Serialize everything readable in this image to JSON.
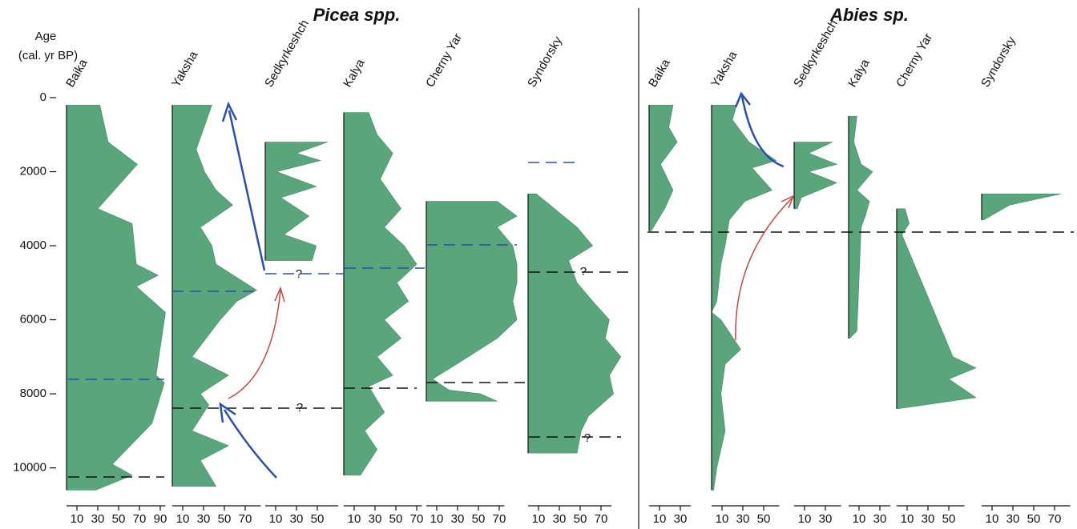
{
  "chart_data": {
    "type": "pollen-diagram",
    "ylabel": "Age",
    "ylabel_unit": "(cal. yr BP)",
    "ylim": [
      0,
      10700
    ],
    "yticks": [
      0,
      2000,
      4000,
      6000,
      8000,
      10000
    ],
    "color": "#5aa57c",
    "annotations": [
      "?",
      "?",
      "?",
      "?"
    ],
    "groups": [
      {
        "title": "Picea spp.",
        "panels": [
          {
            "name": "Baika",
            "xlim": [
              0,
              95
            ],
            "xticks": [
              10,
              30,
              50,
              70,
              90
            ],
            "ages": [
              200,
              1200,
              1800,
              3000,
              3400,
              4500,
              4800,
              5100,
              5800,
              7500,
              7700,
              8800,
              9900,
              10200,
              10600
            ],
            "values": [
              32,
              40,
              68,
              30,
              63,
              67,
              88,
              67,
              95,
              86,
              94,
              82,
              44,
              63,
              28
            ]
          },
          {
            "name": "Yaksha",
            "xlim": [
              0,
              85
            ],
            "xticks": [
              10,
              30,
              50,
              70
            ],
            "ages": [
              200,
              1400,
              2000,
              2500,
              2900,
              3500,
              4000,
              4500,
              5200,
              5500,
              6000,
              7000,
              7500,
              8000,
              8300,
              9000,
              9400,
              9800,
              10500
            ],
            "values": [
              38,
              23,
              31,
              42,
              58,
              27,
              38,
              42,
              81,
              62,
              46,
              19,
              54,
              27,
              35,
              19,
              54,
              27,
              42
            ]
          },
          {
            "name": "Sedkyrkeshch",
            "xlim": [
              0,
              70
            ],
            "xticks": [
              10,
              30,
              50
            ],
            "ages": [
              1200,
              1500,
              1700,
              2000,
              2400,
              2700,
              3200,
              3700,
              4000,
              4400
            ],
            "values": [
              60,
              30,
              53,
              11,
              49,
              15,
              42,
              18,
              49,
              45
            ]
          },
          {
            "name": "Kalya",
            "xlim": [
              0,
              75
            ],
            "xticks": [
              10,
              30,
              50,
              70
            ],
            "ages": [
              400,
              1000,
              1500,
              2200,
              3000,
              3500,
              4000,
              4500,
              5000,
              5500,
              6000,
              6500,
              7000,
              7500,
              7800,
              8500,
              9000,
              9500,
              10200
            ],
            "values": [
              24,
              32,
              47,
              35,
              55,
              39,
              58,
              70,
              51,
              62,
              39,
              55,
              32,
              47,
              24,
              39,
              20,
              32,
              16
            ]
          },
          {
            "name": "Cherny Yar",
            "xlim": [
              0,
              75
            ],
            "xticks": [
              10,
              30,
              50,
              70
            ],
            "ages": [
              2800,
              3200,
              3500,
              4000,
              4500,
              5000,
              5500,
              6000,
              6500,
              7200,
              7600,
              7900,
              8000,
              8200
            ],
            "values": [
              68,
              87,
              68,
              83,
              87,
              87,
              83,
              87,
              68,
              29,
              6,
              22,
              52,
              68
            ]
          },
          {
            "name": "Syndorsky",
            "xlim": [
              0,
              80
            ],
            "xticks": [
              10,
              30,
              50,
              70
            ],
            "ages": [
              2600,
              3500,
              4000,
              4400,
              5000,
              5500,
              6000,
              6500,
              7000,
              7500,
              8000,
              8600,
              9000,
              9600
            ],
            "values": [
              8,
              47,
              62,
              39,
              47,
              62,
              78,
              74,
              89,
              78,
              82,
              58,
              51,
              47
            ]
          }
        ]
      },
      {
        "title": "Abies sp.",
        "panels": [
          {
            "name": "Baika",
            "xlim": [
              0,
              40
            ],
            "xticks": [
              10,
              30
            ],
            "ages": [
              200,
              800,
              1200,
              1800,
              2500,
              3000,
              3600
            ],
            "values": [
              23,
              19,
              27,
              11,
              23,
              15,
              2
            ]
          },
          {
            "name": "Yaksha",
            "xlim": [
              0,
              65
            ],
            "xticks": [
              10,
              30,
              50
            ],
            "ages": [
              200,
              600,
              1200,
              1700,
              1900,
              2500,
              2800,
              3300,
              4000,
              4500,
              5500,
              5800,
              6000,
              6800,
              7200,
              8000,
              9000,
              10000,
              10600
            ],
            "values": [
              24,
              20,
              36,
              62,
              39,
              58,
              32,
              17,
              13,
              9,
              5,
              0,
              9,
              28,
              13,
              9,
              13,
              5,
              2
            ]
          },
          {
            "name": "Sedkyrkeshch",
            "xlim": [
              0,
              45
            ],
            "xticks": [
              10,
              30
            ],
            "ages": [
              1200,
              1500,
              1800,
              2000,
              2300,
              2700,
              3000
            ],
            "values": [
              37,
              14,
              41,
              14,
              41,
              7,
              3
            ]
          },
          {
            "name": "Kalya",
            "xlim": [
              0,
              40
            ],
            "xticks": [
              10,
              30
            ],
            "ages": [
              500,
              1200,
              1800,
              2000,
              2500,
              2800,
              3200,
              3500,
              6300,
              6500
            ],
            "values": [
              8,
              5,
              12,
              23,
              8,
              20,
              16,
              12,
              8,
              1
            ]
          },
          {
            "name": "Cherny Yar",
            "xlim": [
              0,
              65
            ],
            "xticks": [
              10,
              30,
              50
            ],
            "ages": [
              3000,
              3400,
              3700,
              7000,
              7300,
              7600,
              8100,
              8400
            ],
            "values": [
              8,
              12,
              5,
              54,
              76,
              50,
              76,
              2
            ]
          },
          {
            "name": "Syndorsky",
            "xlim": [
              0,
              85
            ],
            "xticks": [
              10,
              30,
              50,
              70
            ],
            "ages": [
              2600,
              2900,
              3300
            ],
            "values": [
              76,
              27,
              2
            ]
          }
        ]
      }
    ]
  }
}
